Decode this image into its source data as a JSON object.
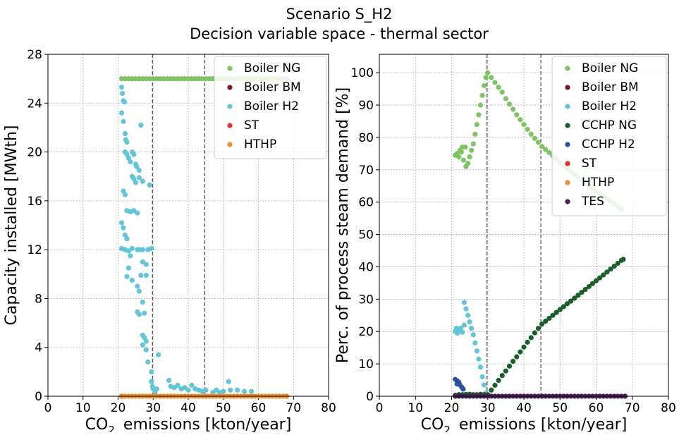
{
  "title": "Scenario S_H2",
  "subtitle": "Decision variable space - thermal sector",
  "chart_data": [
    {
      "type": "scatter",
      "xlabel": [
        "CO",
        "2",
        "emissions [kton/year]"
      ],
      "ylabel": "Capacity installed  [MWth]",
      "xlim": [
        0,
        80
      ],
      "ylim": [
        0,
        28
      ],
      "xticks": [
        0,
        10,
        20,
        30,
        40,
        50,
        60,
        70,
        80
      ],
      "yticks": [
        0,
        4,
        8,
        12,
        16,
        20,
        24,
        28
      ],
      "grid": true,
      "legend": "upper right",
      "vlines": [
        29.8,
        44.7
      ],
      "series": [
        {
          "name": "Boiler NG",
          "color": "#7dc462",
          "x": [
            21,
            22,
            23,
            24,
            25,
            26,
            27,
            28,
            29,
            30,
            31,
            32,
            33,
            34,
            35,
            36,
            37,
            38,
            39,
            40,
            41,
            42,
            43,
            44,
            45,
            46,
            47,
            48,
            49,
            50,
            51,
            52,
            53,
            54,
            55,
            56,
            57,
            58,
            59,
            60,
            61,
            62,
            63,
            64,
            65,
            66,
            67,
            68
          ],
          "values": [
            26,
            26,
            26,
            26,
            26,
            26,
            26,
            26,
            26,
            26,
            26,
            26,
            26,
            26,
            26,
            26,
            26,
            26,
            26,
            26,
            26,
            26,
            26,
            26,
            26,
            26,
            26,
            26,
            26,
            26,
            26,
            26,
            26,
            26,
            26,
            26,
            26,
            26,
            26,
            26,
            26,
            26,
            26,
            26,
            26,
            26,
            26,
            26
          ]
        },
        {
          "name": "Boiler BM",
          "color": "#7b1c1c",
          "x": [
            21,
            30,
            45,
            68
          ],
          "values": [
            0,
            0,
            0,
            0
          ]
        },
        {
          "name": "Boiler H2",
          "color": "#62c6d9",
          "x": [
            21,
            21.2,
            21.5,
            21.8,
            21,
            21.5,
            22,
            22.2,
            22.5,
            22,
            22.5,
            23,
            23.5,
            24,
            24.5,
            25,
            25.3,
            26,
            24,
            24.5,
            25,
            26,
            27,
            29,
            21.5,
            22,
            22.5,
            23.5,
            24.5,
            25.5,
            21,
            21.5,
            22,
            22.5,
            21,
            22,
            23,
            23.5,
            24,
            25.5,
            26,
            27,
            28.5,
            29.5,
            27,
            28,
            23,
            22.5,
            24,
            26.5,
            28,
            25.5,
            26,
            27,
            25.5,
            26,
            27.5,
            26.5,
            27,
            27.5,
            28,
            27,
            28,
            28.5,
            29.5,
            29.5,
            29.8,
            30,
            31,
            31.5,
            30.5,
            34.5,
            35,
            36,
            37,
            38,
            39,
            40,
            41,
            42,
            43,
            44,
            45,
            47,
            48,
            49,
            50,
            51.5,
            52,
            54,
            56,
            58
          ],
          "values": [
            25.3,
            24.8,
            24.2,
            24.1,
            23.2,
            22.5,
            21.5,
            21,
            20.8,
            20,
            19.8,
            19.5,
            19.2,
            20,
            19.8,
            19,
            18.8,
            18.5,
            18,
            17.8,
            17.5,
            17.9,
            17.6,
            17.3,
            16.8,
            16.5,
            15.2,
            15.1,
            15.2,
            15,
            14.2,
            13.8,
            13.2,
            12.9,
            12.1,
            12,
            11.9,
            11.5,
            12.1,
            12,
            12,
            12,
            12,
            12.1,
            11,
            10.8,
            10.5,
            9.8,
            9.5,
            9.9,
            9.9,
            9,
            8.6,
            7.7,
            6.9,
            6.7,
            6.8,
            22.2,
            5,
            4.8,
            4.5,
            4.2,
            3.8,
            2.8,
            2,
            1.2,
            0.8,
            0.6,
            0.6,
            3.4,
            0.3,
            1.3,
            0.8,
            0.7,
            0.9,
            0.6,
            0.7,
            0.5,
            0.9,
            0.6,
            0.5,
            0.4,
            0.5,
            0.3,
            0.5,
            0.3,
            0.4,
            1.2,
            0.5,
            0.5,
            0.4,
            0.4
          ]
        },
        {
          "name": "ST",
          "color": "#e8302a",
          "x": [
            21,
            30,
            45,
            68
          ],
          "values": [
            0,
            0,
            0,
            0
          ]
        },
        {
          "name": "HTHP",
          "color": "#f28c28",
          "x": [
            21,
            22,
            23,
            24,
            25,
            26,
            27,
            28,
            29,
            30,
            31,
            32,
            33,
            34,
            35,
            36,
            37,
            38,
            39,
            40,
            41,
            42,
            43,
            44,
            45,
            46,
            47,
            48,
            49,
            50,
            51,
            52,
            53,
            54,
            55,
            56,
            57,
            58,
            59,
            60,
            61,
            62,
            63,
            64,
            65,
            66,
            67,
            68
          ],
          "values": [
            0,
            0,
            0,
            0,
            0,
            0,
            0,
            0,
            0,
            0,
            0,
            0,
            0,
            0,
            0,
            0,
            0,
            0,
            0,
            0,
            0,
            0,
            0,
            0,
            0,
            0,
            0,
            0,
            0,
            0,
            0,
            0,
            0,
            0,
            0,
            0,
            0,
            0,
            0,
            0,
            0,
            0,
            0,
            0,
            0,
            0,
            0,
            0
          ]
        }
      ]
    },
    {
      "type": "scatter",
      "xlabel": [
        "CO",
        "2",
        "emissions [kton/year]"
      ],
      "ylabel": "Perc. of process steam demand [%]",
      "xlim": [
        0,
        80
      ],
      "ylim": [
        0,
        105.7
      ],
      "xticks": [
        0,
        10,
        20,
        30,
        40,
        50,
        60,
        70,
        80
      ],
      "yticks": [
        0,
        10,
        20,
        30,
        40,
        50,
        60,
        70,
        80,
        90,
        100
      ],
      "grid": true,
      "legend": "upper right",
      "vlines": [
        29.8,
        44.7
      ],
      "series": [
        {
          "name": "Boiler NG",
          "color": "#7dc462",
          "x": [
            21,
            21.5,
            22,
            22.3,
            22.7,
            23,
            23.3,
            23.8,
            24,
            24.5,
            25,
            25.5,
            26,
            26.5,
            27,
            27.5,
            28,
            28.5,
            29,
            29.5,
            30,
            31,
            32,
            33,
            34,
            35,
            36,
            37,
            38,
            39,
            40,
            41,
            42,
            43,
            44,
            45,
            46,
            47,
            48,
            49,
            50,
            51,
            52,
            53,
            54,
            55,
            56,
            57,
            58,
            59,
            60,
            61,
            62,
            63,
            64,
            65,
            66,
            67
          ],
          "values": [
            74.5,
            75,
            74,
            76,
            75.5,
            77,
            73,
            77,
            71,
            72,
            74,
            76,
            78,
            81,
            84,
            87,
            90,
            93,
            96,
            98.5,
            100,
            98.5,
            97,
            95.5,
            94,
            92,
            90.3,
            88.7,
            87,
            85.5,
            84,
            82.5,
            81,
            79.7,
            78.5,
            77.2,
            76.3,
            75.3,
            74.3,
            73.3,
            72.3,
            71.3,
            70.4,
            69.5,
            68.6,
            67.7,
            66.8,
            65.9,
            65,
            64.2,
            63.4,
            62.6,
            61.8,
            61,
            60.2,
            59.4,
            58.6,
            57.8
          ]
        },
        {
          "name": "Boiler BM",
          "color": "#7b1c1c",
          "x": [
            21,
            30,
            45,
            68
          ],
          "values": [
            0,
            0,
            0,
            0
          ]
        },
        {
          "name": "Boiler H2",
          "color": "#62c6d9",
          "x": [
            21,
            21.3,
            21.6,
            22,
            22.5,
            23,
            23.5,
            23.5,
            24,
            24.5,
            25,
            25.5,
            26,
            26.5,
            27,
            27.5,
            28,
            28.5,
            29,
            29.5
          ],
          "values": [
            20,
            21,
            19.5,
            20.5,
            21,
            19.8,
            22,
            29,
            27,
            25,
            23,
            21,
            19,
            16.5,
            14,
            11.5,
            9,
            6,
            3.5,
            1
          ]
        },
        {
          "name": "CCHP NG",
          "color": "#1a5e2a",
          "x": [
            21,
            22,
            23,
            24,
            25,
            26,
            27,
            28,
            29,
            30,
            31,
            32,
            33,
            34,
            35,
            36,
            37,
            38,
            39,
            40,
            41,
            42,
            43,
            44,
            45,
            46,
            47,
            48,
            49,
            50,
            51,
            52,
            53,
            54,
            55,
            56,
            57,
            58,
            59,
            60,
            61,
            62,
            63,
            64,
            65,
            66,
            67,
            67.5
          ],
          "values": [
            0.3,
            0.5,
            0.5,
            0.6,
            0.6,
            0.5,
            0.5,
            0.6,
            0.5,
            0.5,
            1.9,
            3.4,
            4.9,
            6.4,
            7.8,
            9.3,
            10.8,
            12.2,
            13.7,
            15.2,
            16.7,
            18.1,
            19.6,
            21,
            22.3,
            23.2,
            24.1,
            25,
            25.9,
            26.8,
            27.7,
            28.6,
            29.4,
            30.3,
            31.2,
            32.1,
            33,
            33.9,
            34.8,
            35.7,
            36.6,
            37.5,
            38.4,
            39.3,
            40.2,
            41.1,
            42,
            42.3
          ]
        },
        {
          "name": "CCHP H2",
          "color": "#2f4fa0",
          "x": [
            21,
            21.5,
            22,
            22.3,
            22.8,
            23.2,
            21.5
          ],
          "values": [
            5.2,
            4.8,
            4.3,
            3.5,
            2.8,
            2.2,
            3.8
          ]
        },
        {
          "name": "ST",
          "color": "#e8302a",
          "x": [
            21,
            30,
            45,
            68
          ],
          "values": [
            0,
            0,
            0,
            0
          ]
        },
        {
          "name": "HTHP",
          "color": "#f28c28",
          "x": [
            21,
            30,
            45,
            68
          ],
          "values": [
            0,
            0,
            0,
            0
          ]
        },
        {
          "name": "TES",
          "color": "#4b1f5a",
          "x": [
            21,
            22,
            23,
            24,
            25,
            26,
            27,
            28,
            29,
            30,
            31,
            32,
            33,
            34,
            35,
            36,
            37,
            38,
            39,
            40,
            41,
            42,
            43,
            44,
            45,
            46,
            47,
            48,
            49,
            50,
            51,
            52,
            53,
            54,
            55,
            56,
            57,
            58,
            59,
            60,
            61,
            62,
            63,
            64,
            65,
            66,
            67,
            68
          ],
          "values": [
            0,
            0,
            0,
            0,
            0,
            0,
            0,
            0,
            0,
            0,
            0,
            0,
            0,
            0,
            0,
            0,
            0,
            0,
            0,
            0,
            0,
            0,
            0,
            0,
            0,
            0,
            0,
            0,
            0,
            0,
            0,
            0,
            0,
            0,
            0,
            0,
            0,
            0,
            0,
            0,
            0,
            0,
            0,
            0,
            0,
            0,
            0,
            0
          ]
        }
      ]
    }
  ]
}
